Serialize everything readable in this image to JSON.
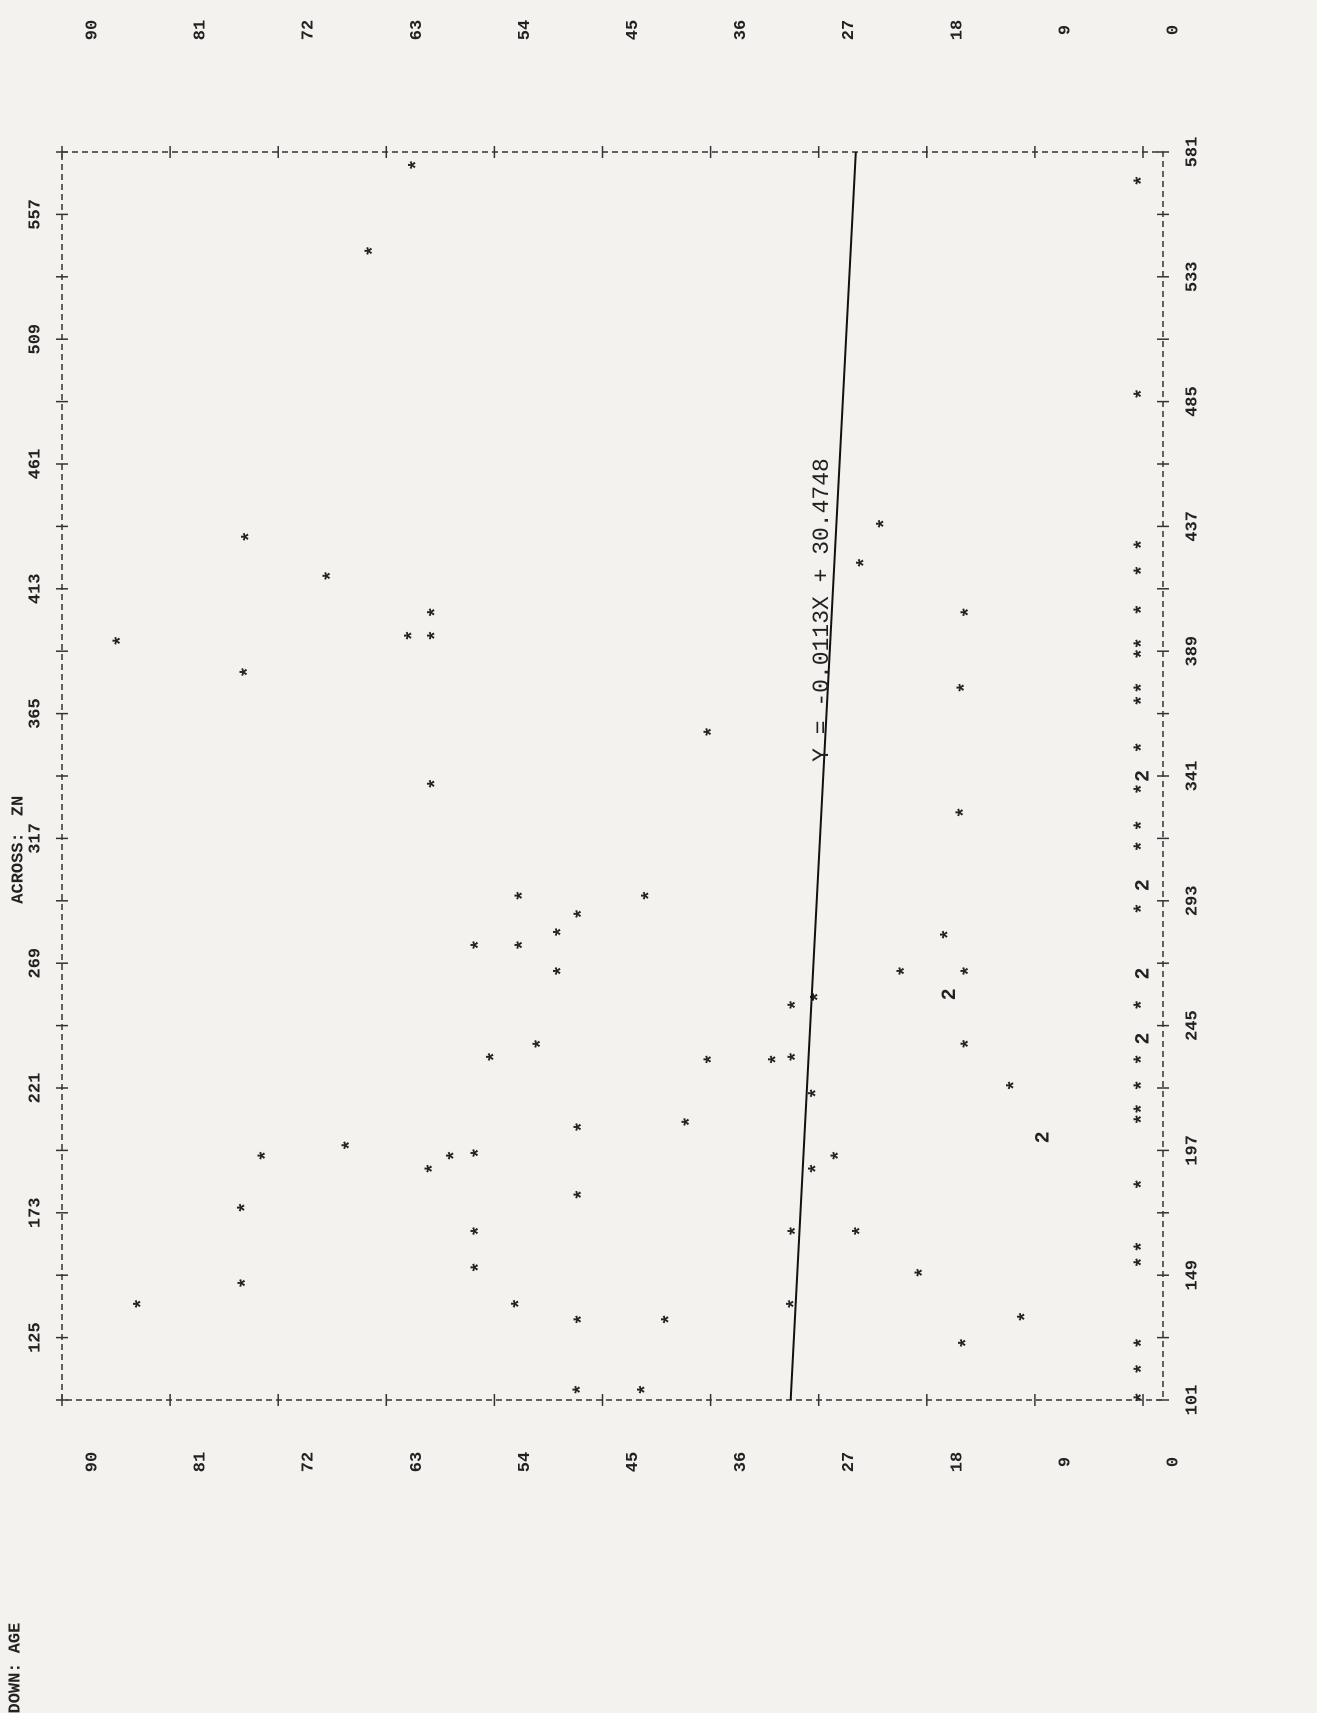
{
  "chart_data": {
    "type": "scatter",
    "across_label": "ACROSS:",
    "across_var": "ZN",
    "down_label": "DOWN:",
    "down_var": "AGE",
    "x": [
      138,
      393,
      146,
      175,
      381,
      433,
      195,
      418,
      199,
      543,
      576,
      395,
      395,
      404,
      338,
      190,
      195,
      276,
      196,
      166,
      152,
      233,
      138,
      295,
      276,
      238,
      266,
      281,
      288,
      180,
      105,
      206,
      132,
      105,
      295,
      132,
      208,
      232,
      358,
      232,
      138,
      166,
      233,
      253,
      219,
      190,
      256,
      195,
      166,
      423,
      438,
      266,
      150,
      280,
      257,
      238,
      266,
      327,
      375,
      404,
      123,
      133,
      202,
      222,
      102,
      113,
      123,
      154,
      160,
      184,
      209,
      213,
      222,
      232,
      240,
      253,
      265,
      290,
      299,
      314,
      322,
      336,
      341,
      352,
      370,
      375,
      388,
      392,
      405,
      420,
      430,
      488,
      570
    ],
    "values": [
      83.3,
      85.0,
      74.6,
      74.6,
      74.4,
      74.3,
      72.9,
      67.5,
      65.9,
      64.0,
      60.4,
      60.7,
      58.8,
      58.8,
      58.8,
      59.0,
      57.2,
      55.2,
      55.2,
      55.2,
      55.2,
      53.9,
      51.8,
      51.5,
      51.5,
      50.0,
      48.3,
      48.3,
      46.6,
      46.6,
      46.7,
      46.6,
      46.6,
      41.3,
      41.0,
      39.3,
      37.6,
      35.8,
      35.8,
      30.4,
      28.9,
      28.8,
      28.8,
      28.8,
      27.1,
      27.1,
      26.9,
      25.2,
      23.4,
      23.1,
      21.4,
      19.7,
      18.2,
      16.1,
      16.1,
      14.4,
      14.4,
      14.8,
      14.7,
      14.4,
      14.6,
      9.7,
      8.3,
      10.6,
      0,
      0,
      0,
      0,
      0,
      0,
      0,
      0,
      0,
      0,
      0,
      0,
      0,
      0,
      0,
      0,
      0,
      0,
      0,
      0,
      0,
      0,
      0,
      0,
      0,
      0,
      0,
      0,
      0
    ],
    "symbols": [
      "*",
      "*",
      "*",
      "*",
      "*",
      "*",
      "*",
      "*",
      "*",
      "*",
      "*",
      "*",
      "*",
      "*",
      "*",
      "*",
      "*",
      "*",
      "*",
      "*",
      "*",
      "*",
      "*",
      "*",
      "*",
      "*",
      "*",
      "*",
      "*",
      "*",
      "*",
      "*",
      "*",
      "*",
      "*",
      "*",
      "*",
      "*",
      "*",
      "*",
      "*",
      "*",
      "*",
      "*",
      "*",
      "*",
      "*",
      "*",
      "*",
      "*",
      "*",
      "*",
      "*",
      "*",
      "2",
      "*",
      "*",
      "*",
      "*",
      "*",
      "*",
      "*",
      "2",
      "*",
      "*",
      "*",
      "*",
      "*",
      "*",
      "*",
      "*",
      "*",
      "*",
      "*",
      "2",
      "*",
      "2",
      "*",
      "2",
      "*",
      "*",
      "*",
      "2",
      "*",
      "*",
      "*",
      "*",
      "*",
      "*",
      "*",
      "*",
      "*",
      "*"
    ],
    "xlim": [
      101,
      581
    ],
    "xticks": [
      101,
      125,
      149,
      173,
      197,
      221,
      245,
      269,
      293,
      317,
      341,
      365,
      389,
      413,
      437,
      461,
      485,
      509,
      533,
      557,
      581
    ],
    "ylim": [
      0,
      90
    ],
    "yticks": [
      0,
      9,
      18,
      27,
      36,
      45,
      54,
      63,
      72,
      81,
      90
    ],
    "regression": {
      "label": "Y = -0.0113X + 30.4748",
      "slope": -0.0113,
      "intercept": 30.4748
    }
  }
}
